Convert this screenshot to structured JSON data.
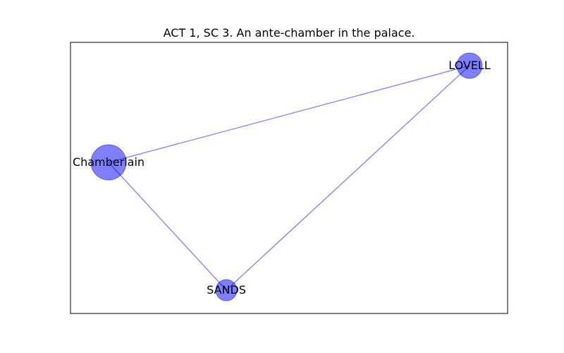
{
  "title": "ACT 1, SC 3. An ante-chamber in the palace.",
  "colors": {
    "node_fill": "#0000ff",
    "edge": "#0000ff",
    "frame": "#000000"
  },
  "graph": {
    "nodes": [
      {
        "id": "chamberlain",
        "label": "Chamberlain",
        "weight": 2
      },
      {
        "id": "lovell",
        "label": "LOVELL",
        "weight": 1
      },
      {
        "id": "sands",
        "label": "SANDS",
        "weight": 1
      }
    ],
    "edges": [
      {
        "source": "chamberlain",
        "target": "lovell"
      },
      {
        "source": "chamberlain",
        "target": "sands"
      },
      {
        "source": "sands",
        "target": "lovell"
      }
    ]
  }
}
